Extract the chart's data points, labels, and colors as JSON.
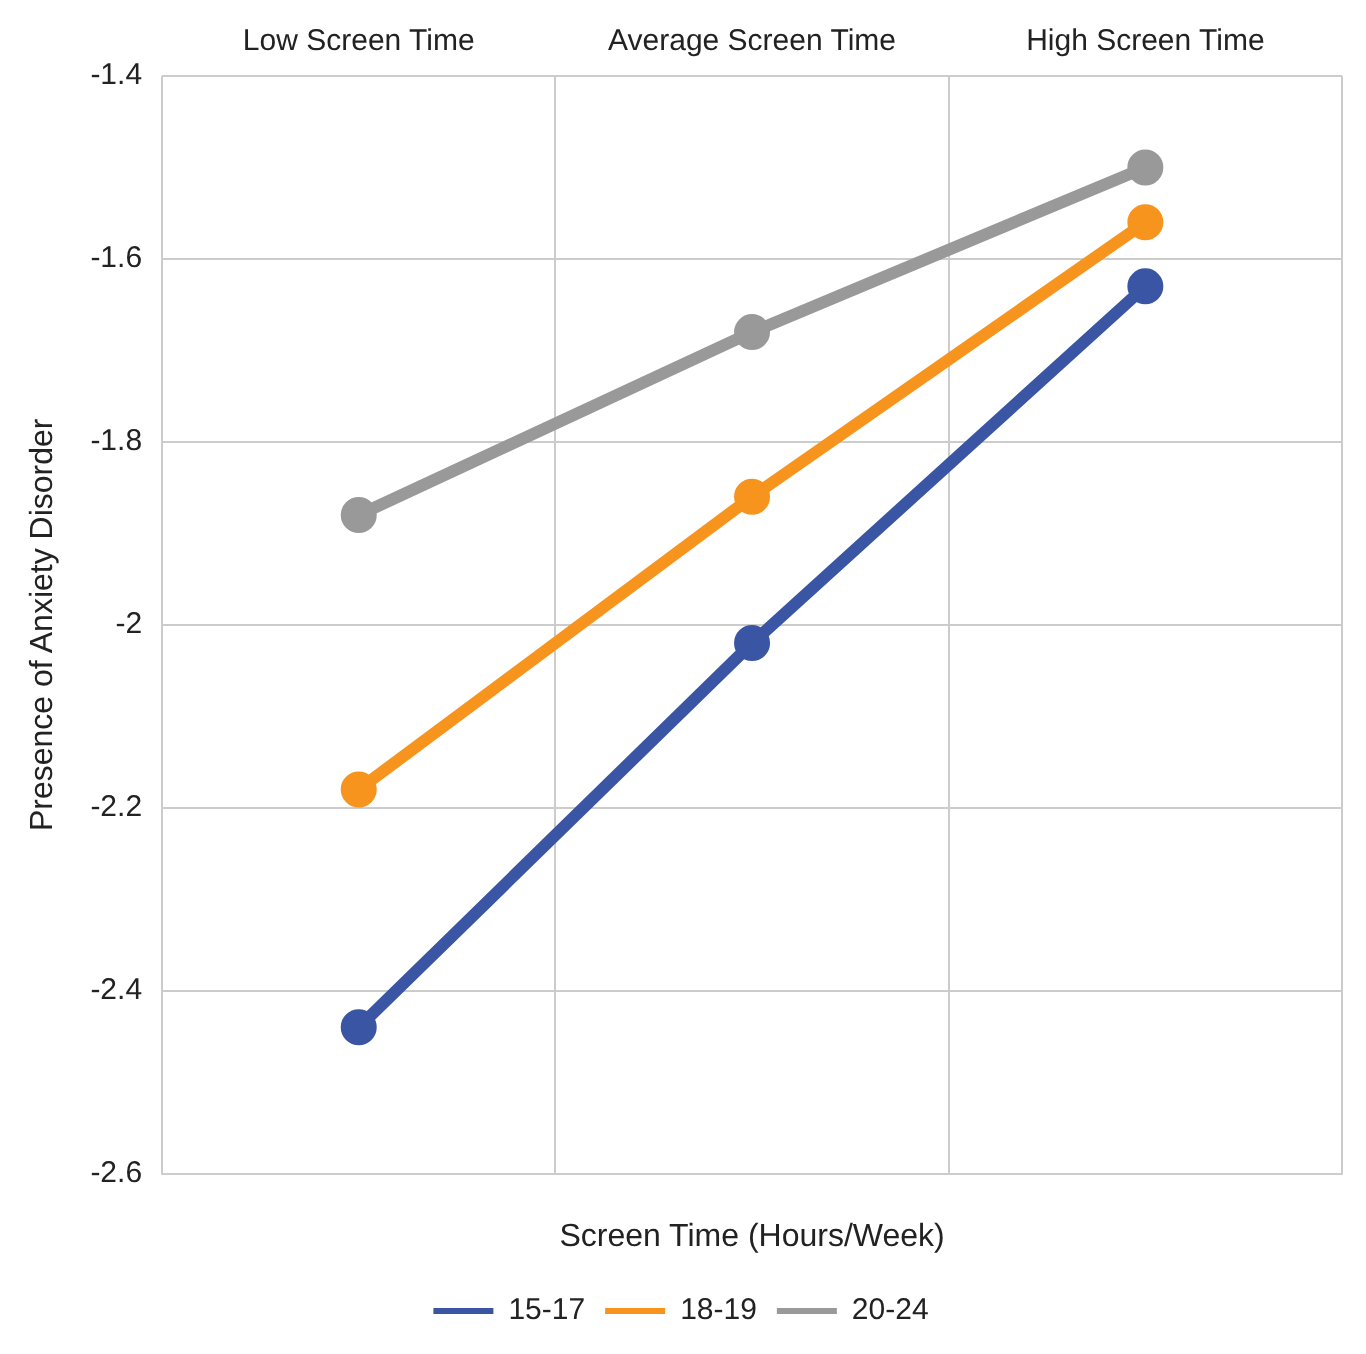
{
  "chart_data": {
    "type": "line",
    "xlabel": "Screen Time (Hours/Week)",
    "ylabel": "Presence of Anxiety Disorder",
    "categories": [
      "Low Screen Time",
      "Average Screen Time",
      "High Screen Time"
    ],
    "series": [
      {
        "name": "15-17",
        "color": "#3a55a4",
        "values": [
          -2.44,
          -2.02,
          -1.63
        ]
      },
      {
        "name": "18-19",
        "color": "#f7941d",
        "values": [
          -2.18,
          -1.86,
          -1.56
        ]
      },
      {
        "name": "20-24",
        "color": "#999999",
        "values": [
          -1.88,
          -1.68,
          -1.5
        ]
      }
    ],
    "ylim": [
      -2.6,
      -1.4
    ],
    "yticks": [
      -2.6,
      -2.4,
      -2.2,
      -2,
      -1.8,
      -1.6,
      -1.4
    ],
    "grid": true,
    "legend": "bottom",
    "marker": "circle",
    "line_style": "solid"
  }
}
